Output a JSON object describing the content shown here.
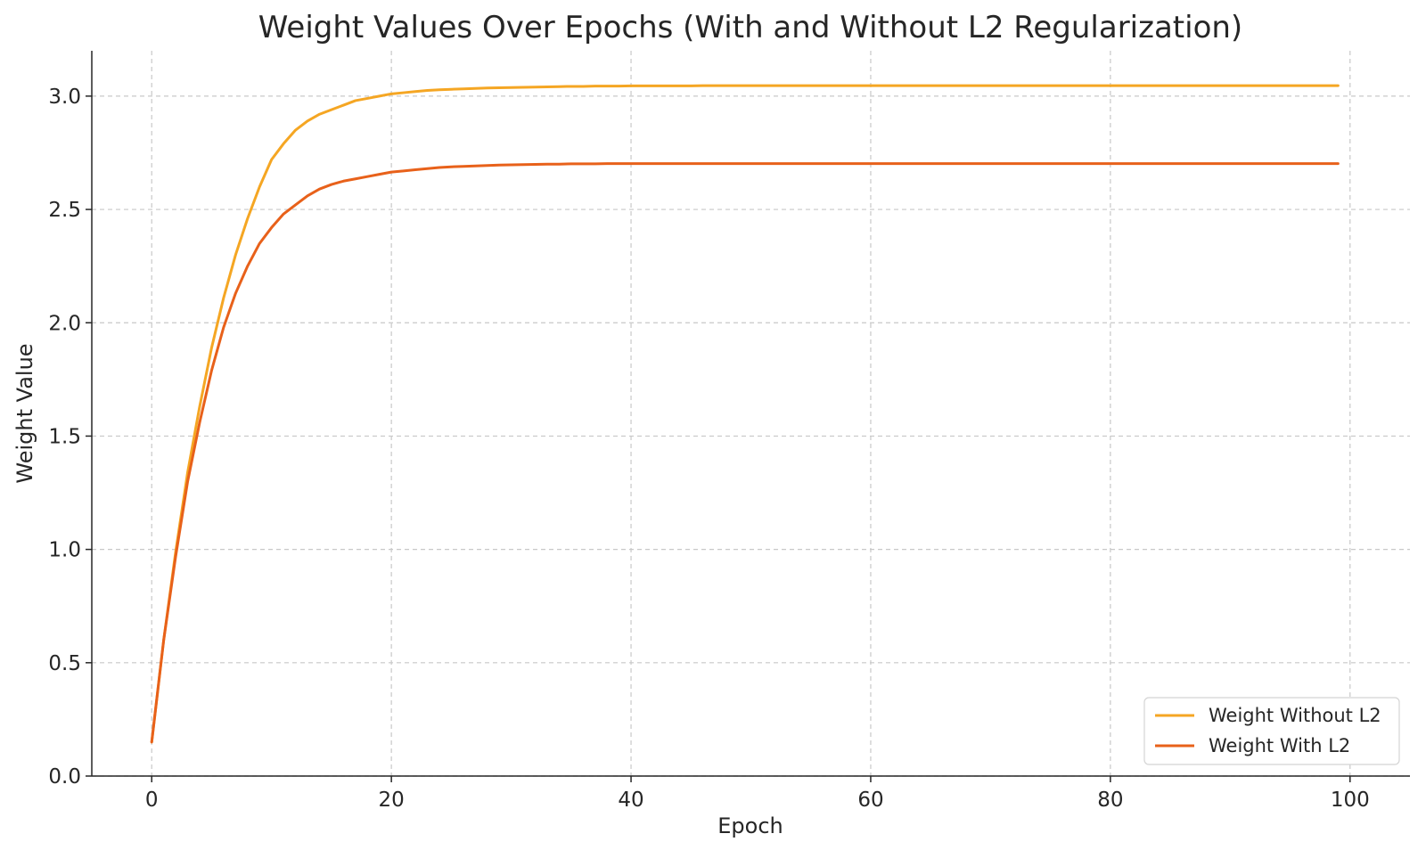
{
  "chart_data": {
    "type": "line",
    "title": "Weight Values Over Epochs (With and Without L2 Regularization)",
    "xlabel": "Epoch",
    "ylabel": "Weight Value",
    "xlim": [
      -5,
      105
    ],
    "ylim": [
      0.0,
      3.2
    ],
    "xticks": [
      0,
      20,
      40,
      60,
      80,
      100
    ],
    "yticks": [
      0.0,
      0.5,
      1.0,
      1.5,
      2.0,
      2.5,
      3.0
    ],
    "xtick_labels": [
      "0",
      "20",
      "40",
      "60",
      "80",
      "100"
    ],
    "ytick_labels": [
      "0.0",
      "0.5",
      "1.0",
      "1.5",
      "2.0",
      "2.5",
      "3.0"
    ],
    "grid": true,
    "legend_position": "lower-right",
    "x": [
      0,
      1,
      2,
      3,
      4,
      5,
      6,
      7,
      8,
      9,
      10,
      11,
      12,
      13,
      14,
      15,
      16,
      17,
      18,
      19,
      20,
      21,
      22,
      23,
      24,
      25,
      26,
      27,
      28,
      29,
      30,
      31,
      32,
      33,
      34,
      35,
      36,
      37,
      38,
      39,
      40,
      41,
      42,
      43,
      44,
      45,
      46,
      47,
      48,
      49,
      50,
      51,
      52,
      53,
      54,
      55,
      56,
      57,
      58,
      59,
      60,
      61,
      62,
      63,
      64,
      65,
      66,
      67,
      68,
      69,
      70,
      71,
      72,
      73,
      74,
      75,
      76,
      77,
      78,
      79,
      80,
      81,
      82,
      83,
      84,
      85,
      86,
      87,
      88,
      89,
      90,
      91,
      92,
      93,
      94,
      95,
      96,
      97,
      98,
      99
    ],
    "series": [
      {
        "name": "Weight Without L2",
        "color": "#f5a623",
        "values": [
          0.15,
          0.6,
          0.99,
          1.34,
          1.63,
          1.89,
          2.11,
          2.3,
          2.46,
          2.6,
          2.72,
          2.79,
          2.85,
          2.89,
          2.92,
          2.94,
          2.96,
          2.98,
          2.99,
          3.0,
          3.01,
          3.015,
          3.02,
          3.025,
          3.028,
          3.03,
          3.032,
          3.034,
          3.036,
          3.037,
          3.038,
          3.039,
          3.04,
          3.041,
          3.042,
          3.043,
          3.043,
          3.044,
          3.044,
          3.044,
          3.045,
          3.045,
          3.045,
          3.045,
          3.045,
          3.045,
          3.046,
          3.046,
          3.046,
          3.046,
          3.046,
          3.046,
          3.046,
          3.046,
          3.046,
          3.046,
          3.046,
          3.046,
          3.046,
          3.046,
          3.046,
          3.046,
          3.046,
          3.046,
          3.046,
          3.046,
          3.046,
          3.046,
          3.046,
          3.046,
          3.046,
          3.046,
          3.046,
          3.046,
          3.046,
          3.046,
          3.046,
          3.046,
          3.046,
          3.046,
          3.046,
          3.046,
          3.046,
          3.046,
          3.046,
          3.046,
          3.046,
          3.046,
          3.046,
          3.046,
          3.046,
          3.046,
          3.046,
          3.046,
          3.046,
          3.046,
          3.046,
          3.046,
          3.046,
          3.046
        ]
      },
      {
        "name": "Weight With L2",
        "color": "#e8611a",
        "values": [
          0.15,
          0.6,
          0.97,
          1.3,
          1.56,
          1.79,
          1.98,
          2.13,
          2.25,
          2.35,
          2.42,
          2.48,
          2.52,
          2.56,
          2.59,
          2.61,
          2.625,
          2.635,
          2.645,
          2.655,
          2.665,
          2.67,
          2.675,
          2.68,
          2.685,
          2.688,
          2.69,
          2.692,
          2.694,
          2.696,
          2.697,
          2.698,
          2.699,
          2.7,
          2.7,
          2.701,
          2.701,
          2.701,
          2.702,
          2.702,
          2.702,
          2.702,
          2.702,
          2.702,
          2.702,
          2.702,
          2.702,
          2.702,
          2.702,
          2.702,
          2.702,
          2.702,
          2.702,
          2.702,
          2.702,
          2.702,
          2.702,
          2.702,
          2.702,
          2.702,
          2.702,
          2.702,
          2.702,
          2.702,
          2.702,
          2.702,
          2.702,
          2.702,
          2.702,
          2.702,
          2.702,
          2.702,
          2.702,
          2.702,
          2.702,
          2.702,
          2.702,
          2.702,
          2.702,
          2.702,
          2.702,
          2.702,
          2.702,
          2.702,
          2.702,
          2.702,
          2.702,
          2.702,
          2.702,
          2.702,
          2.702,
          2.702,
          2.702,
          2.702,
          2.702,
          2.702,
          2.702,
          2.702,
          2.702,
          2.702
        ]
      }
    ]
  }
}
